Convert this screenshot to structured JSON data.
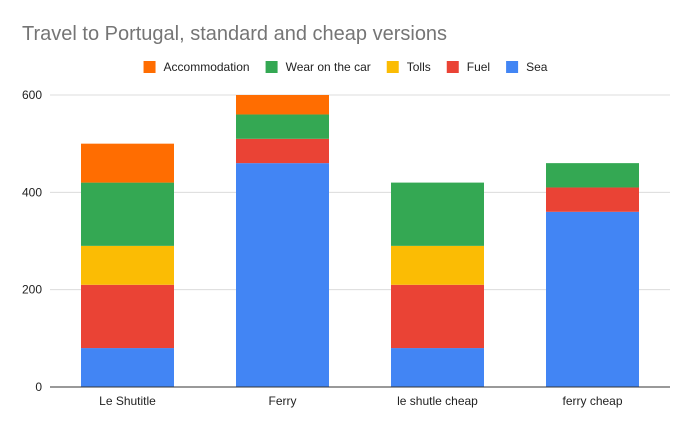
{
  "chart_data": {
    "type": "bar",
    "stacked": true,
    "title": "Travel to Portugal, standard and cheap versions",
    "xlabel": "",
    "ylabel": "",
    "categories": [
      "Le Shutitle",
      "Ferry",
      "le shutle cheap",
      "ferry cheap"
    ],
    "ylim": [
      0,
      600
    ],
    "yticks": [
      0,
      200,
      400,
      600
    ],
    "grid": true,
    "legend_position": "top",
    "legend_order": [
      "Accommodation",
      "Wear on the car",
      "Tolls",
      "Fuel",
      "Sea"
    ],
    "series": [
      {
        "name": "Sea",
        "color": "#4285f4",
        "values": [
          80,
          460,
          80,
          360
        ]
      },
      {
        "name": "Fuel",
        "color": "#ea4335",
        "values": [
          130,
          50,
          130,
          50
        ]
      },
      {
        "name": "Tolls",
        "color": "#fbbc04",
        "values": [
          80,
          0,
          80,
          0
        ]
      },
      {
        "name": "Wear on the car",
        "color": "#34a853",
        "values": [
          130,
          50,
          130,
          50
        ]
      },
      {
        "name": "Accommodation",
        "color": "#ff6d01",
        "values": [
          80,
          40,
          0,
          0
        ]
      }
    ]
  }
}
